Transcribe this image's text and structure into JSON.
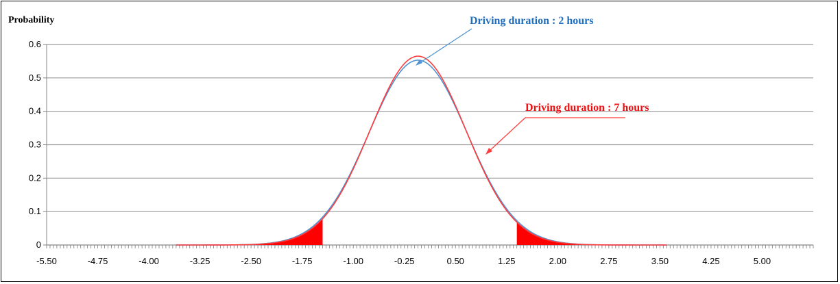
{
  "chart_data": {
    "type": "line",
    "ylabel": "Probability",
    "xlabel": "",
    "ylim": [
      0,
      0.6
    ],
    "xlim": [
      -5.5,
      5.75
    ],
    "y_ticks": [
      "0",
      "0.1",
      "0.2",
      "0.3",
      "0.4",
      "0.5",
      "0.6"
    ],
    "x_ticks": [
      "-5.50",
      "-4.75",
      "-4.00",
      "-3.25",
      "-2.50",
      "-1.75",
      "-1.00",
      "-0.25",
      "0.50",
      "1.25",
      "2.00",
      "2.75",
      "3.50",
      "4.25",
      "5.00"
    ],
    "x_tick_values": [
      -5.5,
      -4.75,
      -4.0,
      -3.25,
      -2.5,
      -1.75,
      -1.0,
      -0.25,
      0.5,
      1.25,
      2.0,
      2.75,
      3.5,
      4.25,
      5.0
    ],
    "grid": true,
    "series": [
      {
        "name": "Driving duration : 2 hours",
        "distribution": "normal",
        "mean": -0.05,
        "sd": 0.72,
        "peak": 0.553,
        "color": "#4f93d3"
      },
      {
        "name": "Driving duration : 7 hours",
        "distribution": "normal",
        "mean": -0.05,
        "sd": 0.705,
        "peak": 0.565,
        "color": "#ff3b3b"
      }
    ],
    "shaded_tails": {
      "color": "#ff0000",
      "left_below": -1.45,
      "right_above": 1.4
    },
    "annotations": [
      {
        "text": "Driving duration : 2 hours",
        "color": "#1f6fbf"
      },
      {
        "text": "Driving duration : 7 hours",
        "color": "#ee1111"
      }
    ]
  }
}
